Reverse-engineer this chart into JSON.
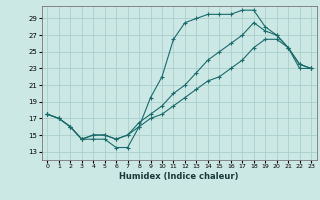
{
  "xlabel": "Humidex (Indice chaleur)",
  "background_color": "#cce8e4",
  "grid_color": "#aacfcb",
  "line_color": "#1a6b6b",
  "xlim": [
    -0.5,
    23.5
  ],
  "ylim": [
    12,
    30.5
  ],
  "yticks": [
    13,
    15,
    17,
    19,
    21,
    23,
    25,
    27,
    29
  ],
  "xticks": [
    0,
    1,
    2,
    3,
    4,
    5,
    6,
    7,
    8,
    9,
    10,
    11,
    12,
    13,
    14,
    15,
    16,
    17,
    18,
    19,
    20,
    21,
    22,
    23
  ],
  "line1_x": [
    0,
    1,
    2,
    3,
    4,
    5,
    6,
    7,
    8,
    9,
    10,
    11,
    12,
    13,
    14,
    15,
    16,
    17,
    18,
    19,
    20,
    21,
    22,
    23
  ],
  "line1_y": [
    17.5,
    17.0,
    16.0,
    14.5,
    14.5,
    14.5,
    13.5,
    13.5,
    16.0,
    19.5,
    22.0,
    26.5,
    28.5,
    29.0,
    29.5,
    29.5,
    29.5,
    30.0,
    30.0,
    28.0,
    27.0,
    25.5,
    23.5,
    23.0
  ],
  "line2_x": [
    0,
    1,
    2,
    3,
    4,
    5,
    6,
    7,
    8,
    9,
    10,
    11,
    12,
    13,
    14,
    15,
    16,
    17,
    18,
    19,
    20,
    21,
    22,
    23
  ],
  "line2_y": [
    17.5,
    17.0,
    16.0,
    14.5,
    15.0,
    15.0,
    14.5,
    15.0,
    16.5,
    17.5,
    18.5,
    20.0,
    21.0,
    22.5,
    24.0,
    25.0,
    26.0,
    27.0,
    28.5,
    27.5,
    27.0,
    25.5,
    23.5,
    23.0
  ],
  "line3_x": [
    0,
    1,
    2,
    3,
    4,
    5,
    6,
    7,
    8,
    9,
    10,
    11,
    12,
    13,
    14,
    15,
    16,
    17,
    18,
    19,
    20,
    21,
    22,
    23
  ],
  "line3_y": [
    17.5,
    17.0,
    16.0,
    14.5,
    15.0,
    15.0,
    14.5,
    15.0,
    16.0,
    17.0,
    17.5,
    18.5,
    19.5,
    20.5,
    21.5,
    22.0,
    23.0,
    24.0,
    25.5,
    26.5,
    26.5,
    25.5,
    23.0,
    23.0
  ]
}
